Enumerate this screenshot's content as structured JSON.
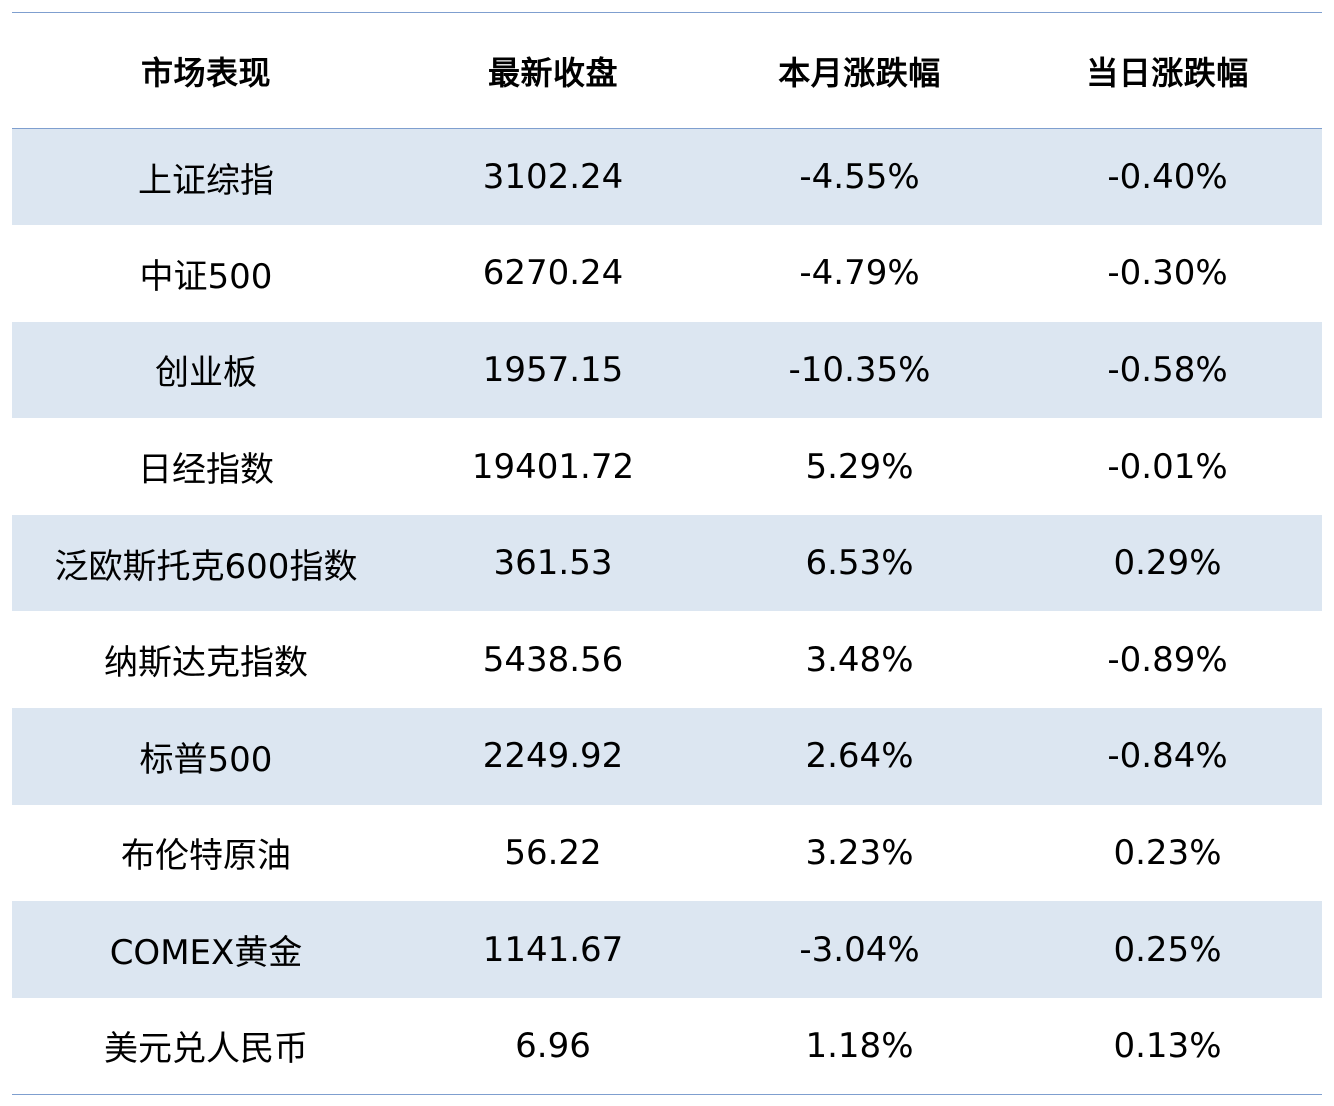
{
  "table": {
    "headers": [
      "市场表现",
      "最新收盘",
      "本月涨跌幅",
      "当日涨跌幅"
    ],
    "rows": [
      [
        "上证综指",
        "3102.24",
        "-4.55%",
        "-0.40%"
      ],
      [
        "中证500",
        "6270.24",
        "-4.79%",
        "-0.30%"
      ],
      [
        "创业板",
        "1957.15",
        "-10.35%",
        "-0.58%"
      ],
      [
        "日经指数",
        "19401.72",
        "5.29%",
        "-0.01%"
      ],
      [
        "泛欧斯托克600指数",
        "361.53",
        "6.53%",
        "0.29%"
      ],
      [
        "纳斯达克指数",
        "5438.56",
        "3.48%",
        "-0.89%"
      ],
      [
        "标普500",
        "2249.92",
        "2.64%",
        "-0.84%"
      ],
      [
        "布伦特原油",
        "56.22",
        "3.23%",
        "0.23%"
      ],
      [
        "COMEX黄金",
        "1141.67",
        "-3.04%",
        "0.25%"
      ],
      [
        "美元兑人民币",
        "6.96",
        "1.18%",
        "0.13%"
      ]
    ]
  },
  "colors": {
    "stripe": "#dce6f1",
    "rule": "#7f9fcf",
    "text": "#000000"
  }
}
